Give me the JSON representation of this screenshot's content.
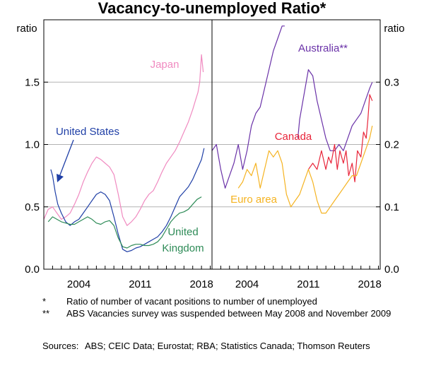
{
  "title": "Vacancy-to-unemployed Ratio*",
  "notes": [
    {
      "mark": "*",
      "text": "Ratio of number of vacant positions to number of unemployed"
    },
    {
      "mark": "**",
      "text": "ABS Vacancies survey was suspended between May 2008 and November 2009"
    }
  ],
  "sources": {
    "label": "Sources:",
    "text": "ABS; CEIC Data; Eurostat; RBA; Statistics Canada; Thomson Reuters"
  },
  "colors": {
    "united_states": "#1f3fa6",
    "japan": "#f08ac0",
    "united_kingdom": "#2e8b57",
    "australia": "#6a32a8",
    "canada": "#e8253a",
    "euro_area": "#f5b321",
    "grid": "#b3b3b3",
    "axis": "#000000"
  },
  "chart_data": [
    {
      "type": "line",
      "panel": "left",
      "ylabel": "ratio",
      "ylim": [
        0,
        2.0
      ],
      "yticks": [
        "0.0",
        "0.5",
        "1.0",
        "1.5"
      ],
      "ytick_values": [
        0,
        0.5,
        1.0,
        1.5
      ],
      "xlim": [
        2000,
        2019.2
      ],
      "xticks": [
        "2004",
        "2011",
        "2018"
      ],
      "xtick_values": [
        2004,
        2011,
        2018
      ],
      "grid": true,
      "series": [
        {
          "name": "Japan",
          "color_key": "japan",
          "x": [
            2000.0,
            2000.5,
            2001.0,
            2001.5,
            2002.0,
            2002.5,
            2003.0,
            2003.5,
            2004.0,
            2004.5,
            2005.0,
            2005.5,
            2006.0,
            2006.5,
            2007.0,
            2007.5,
            2008.0,
            2008.5,
            2009.0,
            2009.5,
            2010.0,
            2010.5,
            2011.0,
            2011.5,
            2012.0,
            2012.5,
            2013.0,
            2013.5,
            2014.0,
            2014.5,
            2015.0,
            2015.5,
            2016.0,
            2016.5,
            2017.0,
            2017.3,
            2017.6,
            2017.8,
            2018.0,
            2018.2
          ],
          "y": [
            0.4,
            0.48,
            0.5,
            0.45,
            0.4,
            0.42,
            0.45,
            0.52,
            0.6,
            0.7,
            0.78,
            0.85,
            0.9,
            0.88,
            0.85,
            0.82,
            0.76,
            0.6,
            0.42,
            0.35,
            0.38,
            0.42,
            0.48,
            0.55,
            0.6,
            0.63,
            0.7,
            0.78,
            0.85,
            0.9,
            0.95,
            1.02,
            1.1,
            1.18,
            1.28,
            1.35,
            1.42,
            1.5,
            1.72,
            1.58
          ]
        },
        {
          "name": "United States",
          "color_key": "united_states",
          "x": [
            2000.8,
            2001.0,
            2001.3,
            2001.6,
            2002.0,
            2002.5,
            2003.0,
            2003.5,
            2004.0,
            2004.5,
            2005.0,
            2005.5,
            2006.0,
            2006.5,
            2007.0,
            2007.5,
            2008.0,
            2008.5,
            2009.0,
            2009.5,
            2010.0,
            2010.5,
            2011.0,
            2011.5,
            2012.0,
            2012.5,
            2013.0,
            2013.5,
            2014.0,
            2014.5,
            2015.0,
            2015.5,
            2016.0,
            2016.5,
            2017.0,
            2017.5,
            2018.0,
            2018.3
          ],
          "y": [
            0.8,
            0.75,
            0.62,
            0.52,
            0.45,
            0.38,
            0.35,
            0.38,
            0.4,
            0.45,
            0.5,
            0.55,
            0.6,
            0.62,
            0.6,
            0.55,
            0.42,
            0.28,
            0.16,
            0.14,
            0.15,
            0.17,
            0.18,
            0.2,
            0.22,
            0.24,
            0.26,
            0.3,
            0.35,
            0.42,
            0.5,
            0.58,
            0.62,
            0.66,
            0.72,
            0.8,
            0.88,
            0.97
          ]
        },
        {
          "name": "United Kingdom",
          "color_key": "united_kingdom",
          "x": [
            2000.5,
            2001.0,
            2001.5,
            2002.0,
            2002.5,
            2003.0,
            2003.5,
            2004.0,
            2004.5,
            2005.0,
            2005.5,
            2006.0,
            2006.5,
            2007.0,
            2007.5,
            2008.0,
            2008.5,
            2009.0,
            2009.5,
            2010.0,
            2010.5,
            2011.0,
            2011.5,
            2012.0,
            2012.5,
            2013.0,
            2013.5,
            2014.0,
            2014.5,
            2015.0,
            2015.5,
            2016.0,
            2016.5,
            2017.0,
            2017.5,
            2018.0
          ],
          "y": [
            0.38,
            0.42,
            0.4,
            0.38,
            0.37,
            0.36,
            0.36,
            0.38,
            0.4,
            0.42,
            0.4,
            0.37,
            0.36,
            0.38,
            0.39,
            0.35,
            0.25,
            0.18,
            0.17,
            0.19,
            0.2,
            0.2,
            0.19,
            0.19,
            0.2,
            0.22,
            0.26,
            0.32,
            0.38,
            0.42,
            0.45,
            0.46,
            0.48,
            0.52,
            0.56,
            0.58
          ]
        }
      ],
      "labels": [
        {
          "text": "Japan",
          "series_key": "japan"
        },
        {
          "text": "United States",
          "series_key": "united_states"
        },
        {
          "text": "United",
          "series_key": "united_kingdom"
        },
        {
          "text": "Kingdom",
          "series_key": "united_kingdom"
        }
      ]
    },
    {
      "type": "line",
      "panel": "right",
      "ylabel": "ratio",
      "ylim": [
        0,
        0.4
      ],
      "yticks": [
        "0.0",
        "0.1",
        "0.2",
        "0.3"
      ],
      "ytick_values": [
        0,
        0.1,
        0.2,
        0.3
      ],
      "xlim": [
        2000,
        2019.2
      ],
      "xticks": [
        "2004",
        "2011",
        "2018"
      ],
      "xtick_values": [
        2004,
        2011,
        2018
      ],
      "grid": true,
      "series": [
        {
          "name": "Australia**",
          "color_key": "australia",
          "segments": [
            {
              "x": [
                2000.0,
                2000.5,
                2001.0,
                2001.5,
                2002.0,
                2002.5,
                2003.0,
                2003.5,
                2004.0,
                2004.5,
                2005.0,
                2005.5,
                2006.0,
                2006.5,
                2007.0,
                2007.5,
                2008.0,
                2008.3
              ],
              "y": [
                0.19,
                0.2,
                0.16,
                0.13,
                0.15,
                0.17,
                0.2,
                0.16,
                0.19,
                0.23,
                0.25,
                0.26,
                0.29,
                0.32,
                0.35,
                0.37,
                0.39,
                0.39
              ]
            },
            {
              "x": [
                2009.8,
                2010.0,
                2010.5,
                2011.0,
                2011.5,
                2012.0,
                2012.5,
                2013.0,
                2013.5,
                2014.0,
                2014.5,
                2015.0,
                2015.5,
                2016.0,
                2016.5,
                2017.0,
                2017.5,
                2018.0,
                2018.3
              ],
              "y": [
                0.21,
                0.24,
                0.28,
                0.32,
                0.31,
                0.27,
                0.24,
                0.21,
                0.19,
                0.19,
                0.2,
                0.19,
                0.21,
                0.23,
                0.24,
                0.25,
                0.27,
                0.29,
                0.3
              ]
            }
          ]
        },
        {
          "name": "Canada",
          "color_key": "canada",
          "x": [
            2011.0,
            2011.5,
            2012.0,
            2012.5,
            2013.0,
            2013.3,
            2013.6,
            2014.0,
            2014.3,
            2014.6,
            2015.0,
            2015.3,
            2015.6,
            2016.0,
            2016.3,
            2016.6,
            2017.0,
            2017.3,
            2017.6,
            2017.8,
            2018.0,
            2018.3
          ],
          "y": [
            0.16,
            0.17,
            0.16,
            0.19,
            0.16,
            0.18,
            0.17,
            0.2,
            0.16,
            0.19,
            0.17,
            0.19,
            0.15,
            0.17,
            0.14,
            0.19,
            0.18,
            0.22,
            0.21,
            0.24,
            0.28,
            0.27
          ]
        },
        {
          "name": "Euro area",
          "color_key": "euro_area",
          "x": [
            2003.0,
            2003.5,
            2004.0,
            2004.5,
            2005.0,
            2005.5,
            2006.0,
            2006.5,
            2007.0,
            2007.5,
            2008.0,
            2008.5,
            2009.0,
            2009.5,
            2010.0,
            2010.5,
            2011.0,
            2011.5,
            2012.0,
            2012.5,
            2013.0,
            2013.5,
            2014.0,
            2014.5,
            2015.0,
            2015.5,
            2016.0,
            2016.5,
            2017.0,
            2017.5,
            2018.0,
            2018.3
          ],
          "y": [
            0.13,
            0.14,
            0.16,
            0.15,
            0.17,
            0.13,
            0.16,
            0.19,
            0.18,
            0.19,
            0.17,
            0.12,
            0.1,
            0.11,
            0.12,
            0.14,
            0.16,
            0.14,
            0.11,
            0.09,
            0.09,
            0.1,
            0.11,
            0.12,
            0.13,
            0.14,
            0.15,
            0.15,
            0.17,
            0.19,
            0.21,
            0.23
          ]
        }
      ],
      "labels": [
        {
          "text": "Australia**",
          "series_key": "australia"
        },
        {
          "text": "Canada",
          "series_key": "canada"
        },
        {
          "text": "Euro area",
          "series_key": "euro_area"
        }
      ]
    }
  ]
}
